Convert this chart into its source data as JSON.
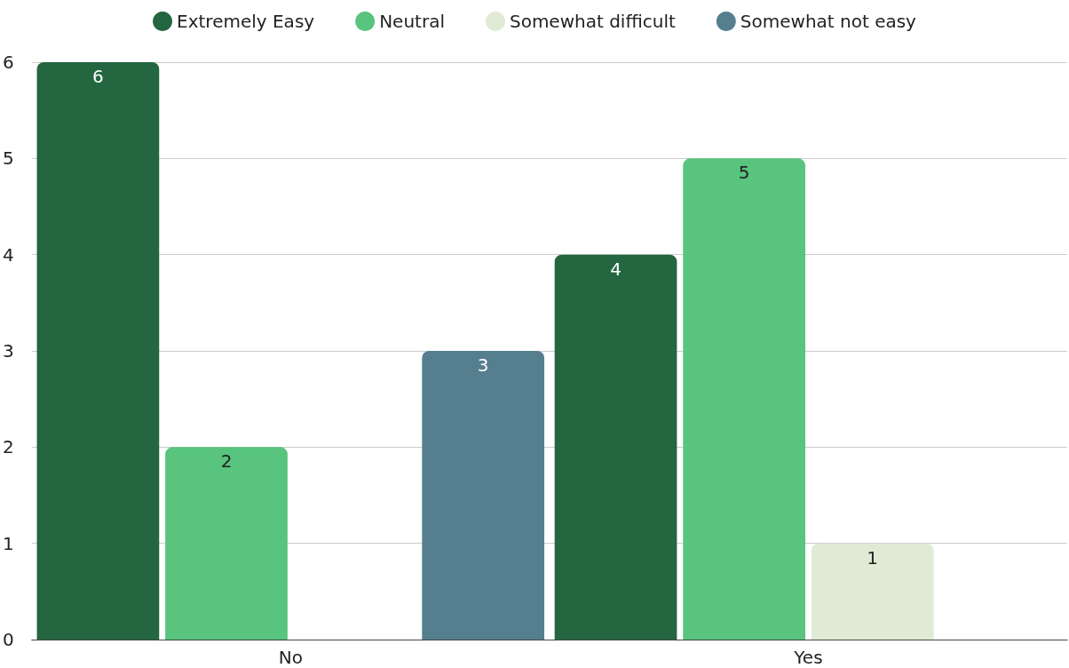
{
  "chart_data": {
    "type": "bar",
    "categories": [
      "No",
      "Yes"
    ],
    "series": [
      {
        "name": "Extremely Easy",
        "color": "#23663f",
        "values": [
          6,
          4
        ]
      },
      {
        "name": "Neutral",
        "color": "#58c47e",
        "values": [
          2,
          5
        ]
      },
      {
        "name": "Somewhat difficult",
        "color": "#e0ebd6",
        "values": [
          null,
          1
        ]
      },
      {
        "name": "Somewhat not easy",
        "color": "#557f8f",
        "values": [
          3,
          null
        ]
      }
    ],
    "ylim": [
      0,
      6
    ],
    "yticks": [
      0,
      1,
      2,
      3,
      4,
      5,
      6
    ],
    "grid": "y",
    "legend": "top",
    "data_labels": true
  }
}
